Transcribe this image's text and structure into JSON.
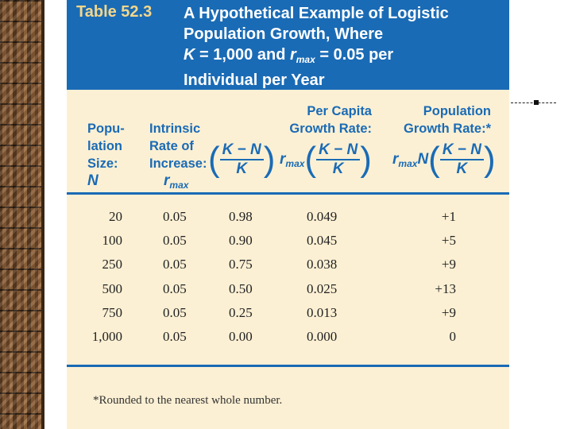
{
  "header": {
    "table_number": "Table 52.3",
    "title_line1": "A Hypothetical Example of Logistic",
    "title_line2": "Population Growth, Where",
    "title_line3_k": "K",
    "title_line3_rest": " = 1,000 and ",
    "title_line3_r": "r",
    "title_line3_rsub": "max",
    "title_line3_tail": " = 0.05 per",
    "title_line4": "Individual per Year"
  },
  "columns": {
    "pop_size": [
      "Popu-",
      "lation",
      "Size:"
    ],
    "pop_symbol": "N",
    "intrinsic": [
      "Intrinsic",
      "Rate of",
      "Increase:"
    ],
    "intrinsic_r": "r",
    "intrinsic_sub": "max",
    "fraction_num": "K − N",
    "fraction_den": "K",
    "per_capita": [
      "Per Capita",
      "Growth Rate:"
    ],
    "per_capita_r": "r",
    "per_capita_sub": "max",
    "pop_growth": [
      "Population",
      "Growth Rate:*"
    ],
    "pop_growth_r": "r",
    "pop_growth_sub": "max",
    "pop_growth_n": "N"
  },
  "rows": [
    {
      "n": "20",
      "rmax": "0.05",
      "frac": "0.98",
      "per_capita": "0.049",
      "growth": "+1"
    },
    {
      "n": "100",
      "rmax": "0.05",
      "frac": "0.90",
      "per_capita": "0.045",
      "growth": "+5"
    },
    {
      "n": "250",
      "rmax": "0.05",
      "frac": "0.75",
      "per_capita": "0.038",
      "growth": "+9"
    },
    {
      "n": "500",
      "rmax": "0.05",
      "frac": "0.50",
      "per_capita": "0.025",
      "growth": "+13"
    },
    {
      "n": "750",
      "rmax": "0.05",
      "frac": "0.25",
      "per_capita": "0.013",
      "growth": "+9"
    },
    {
      "n": "1,000",
      "rmax": "0.05",
      "frac": "0.00",
      "per_capita": "0.000",
      "growth": "0"
    }
  ],
  "footnote": "*Rounded to the nearest whole number.",
  "colors": {
    "header_blue": "#1a6bb5",
    "table_bg": "#fcf0d4",
    "table_number": "#f4d78a"
  }
}
